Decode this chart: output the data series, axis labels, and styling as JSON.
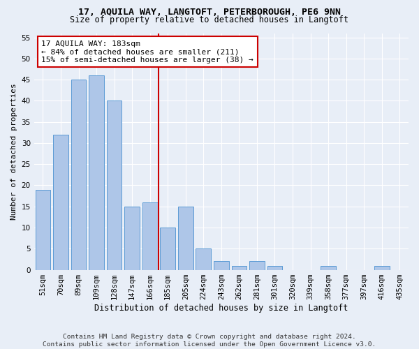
{
  "title1": "17, AQUILA WAY, LANGTOFT, PETERBOROUGH, PE6 9NN",
  "title2": "Size of property relative to detached houses in Langtoft",
  "xlabel": "Distribution of detached houses by size in Langtoft",
  "ylabel": "Number of detached properties",
  "footer": "Contains HM Land Registry data © Crown copyright and database right 2024.\nContains public sector information licensed under the Open Government Licence v3.0.",
  "categories": [
    "51sqm",
    "70sqm",
    "89sqm",
    "109sqm",
    "128sqm",
    "147sqm",
    "166sqm",
    "185sqm",
    "205sqm",
    "224sqm",
    "243sqm",
    "262sqm",
    "281sqm",
    "301sqm",
    "320sqm",
    "339sqm",
    "358sqm",
    "377sqm",
    "397sqm",
    "416sqm",
    "435sqm"
  ],
  "values": [
    19,
    32,
    45,
    46,
    40,
    15,
    16,
    10,
    15,
    5,
    2,
    1,
    2,
    1,
    0,
    0,
    1,
    0,
    0,
    1,
    0
  ],
  "bar_color": "#aec6e8",
  "bar_edge_color": "#5b9bd5",
  "annotation_text": "17 AQUILA WAY: 183sqm\n← 84% of detached houses are smaller (211)\n15% of semi-detached houses are larger (38) →",
  "vline_index": 7,
  "vline_color": "#cc0000",
  "annotation_box_color": "#ffffff",
  "annotation_box_edge": "#cc0000",
  "background_color": "#e8eef7",
  "plot_bg_color": "#e8eef7",
  "ylim": [
    0,
    56
  ],
  "yticks": [
    0,
    5,
    10,
    15,
    20,
    25,
    30,
    35,
    40,
    45,
    50,
    55
  ],
  "title1_fontsize": 9.5,
  "title2_fontsize": 8.5,
  "xlabel_fontsize": 8.5,
  "ylabel_fontsize": 8,
  "tick_fontsize": 7.5,
  "annotation_fontsize": 8,
  "footer_fontsize": 6.8
}
